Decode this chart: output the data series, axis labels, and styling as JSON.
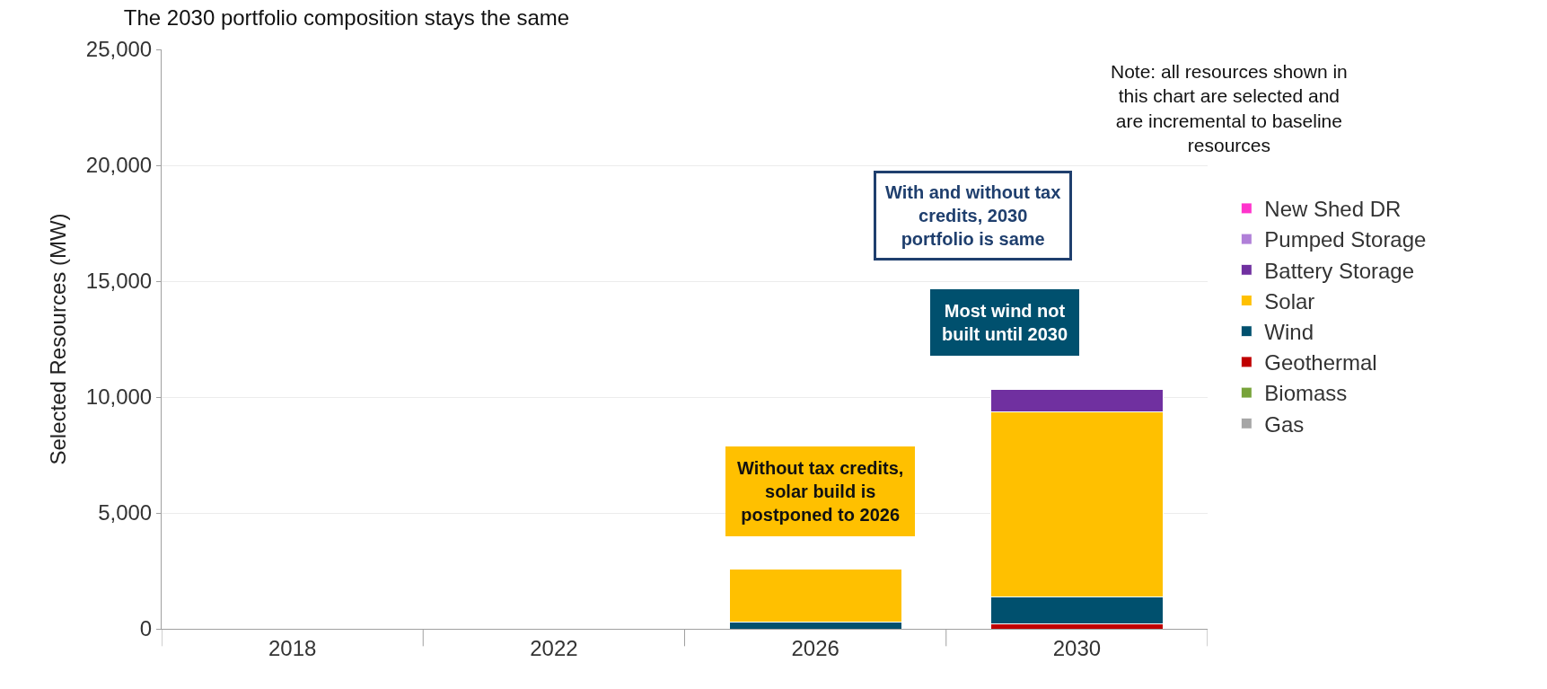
{
  "chart_data": {
    "type": "bar",
    "title": "The 2030 portfolio composition stays the same",
    "ylabel": "Selected Resources (MW)",
    "categories": [
      "2018",
      "2022",
      "2026",
      "2030"
    ],
    "stacked": true,
    "ylim": [
      0,
      25000
    ],
    "yticks": [
      {
        "value": 0,
        "label": "0"
      },
      {
        "value": 5000,
        "label": "5,000"
      },
      {
        "value": 10000,
        "label": "10,000"
      },
      {
        "value": 15000,
        "label": "15,000"
      },
      {
        "value": 20000,
        "label": "20,000"
      },
      {
        "value": 25000,
        "label": "25,000"
      }
    ],
    "grid": "y",
    "legend": "right",
    "series": [
      {
        "name": "Gas",
        "color": "#a6a6a6",
        "values": [
          null,
          null,
          null,
          null
        ]
      },
      {
        "name": "Biomass",
        "color": "#77a33a",
        "values": [
          null,
          null,
          null,
          null
        ]
      },
      {
        "name": "Geothermal",
        "color": "#c00000",
        "values": [
          null,
          null,
          null,
          230
        ]
      },
      {
        "name": "Wind",
        "color": "#00506e",
        "values": [
          null,
          null,
          280,
          1140
        ]
      },
      {
        "name": "Solar",
        "color": "#ffc000",
        "values": [
          null,
          null,
          2310,
          7980
        ]
      },
      {
        "name": "Battery Storage",
        "color": "#7030a0",
        "values": [
          null,
          null,
          null,
          990
        ]
      },
      {
        "name": "Pumped Storage",
        "color": "#b07fd8",
        "values": [
          null,
          null,
          null,
          null
        ]
      },
      {
        "name": "New Shed DR",
        "color": "#ff33cc",
        "values": [
          null,
          null,
          null,
          null
        ]
      }
    ],
    "annotations": [
      "Without tax credits, solar build is postponed to 2026",
      "Most wind not built until 2030",
      "With and without tax credits, 2030 portfolio is same",
      "Note: all resources shown in this chart are selected and are incremental to baseline resources"
    ]
  }
}
